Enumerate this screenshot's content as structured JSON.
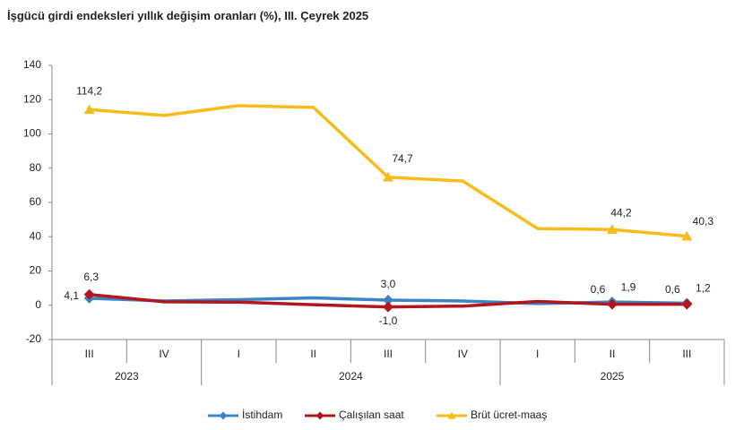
{
  "chart_data": {
    "type": "line",
    "title": "İşgücü girdi endeksleri yıllık değişim oranları (%), III. Çeyrek 2025",
    "category_groups": [
      {
        "name": "2023",
        "categories": [
          "III",
          "IV"
        ]
      },
      {
        "name": "2024",
        "categories": [
          "I",
          "II",
          "III",
          "IV"
        ]
      },
      {
        "name": "2025",
        "categories": [
          "I",
          "II",
          "III"
        ]
      }
    ],
    "series": [
      {
        "name": "İstihdam",
        "color": "#3c84c8",
        "marker": "diamond",
        "values": [
          4.1,
          2.5,
          3.3,
          4.3,
          3.0,
          2.5,
          1.0,
          1.9,
          1.2
        ],
        "value_labels": [
          "4,1",
          null,
          null,
          null,
          "3,0",
          null,
          null,
          "1,9",
          "1,2"
        ]
      },
      {
        "name": "Çalışılan saat",
        "color": "#b3161e",
        "marker": "diamond",
        "values": [
          6.3,
          2.0,
          1.8,
          0.3,
          -1.0,
          -0.5,
          2.2,
          0.6,
          0.6
        ],
        "value_labels": [
          "6,3",
          null,
          null,
          null,
          "-1,0",
          null,
          null,
          "0,6",
          "0,6"
        ]
      },
      {
        "name": "Brüt ücret-maaş",
        "color": "#f7bc1c",
        "marker": "triangle",
        "values": [
          114.2,
          110.8,
          116.5,
          115.5,
          74.7,
          72.5,
          44.8,
          44.2,
          40.3
        ],
        "value_labels": [
          "114,2",
          null,
          null,
          null,
          "74,7",
          null,
          null,
          "44,2",
          "40,3"
        ]
      }
    ],
    "ylim": [
      -20,
      140
    ],
    "yticks": [
      -20,
      0,
      20,
      40,
      60,
      80,
      100,
      120,
      140
    ],
    "grid": false,
    "legend": "bottom"
  }
}
